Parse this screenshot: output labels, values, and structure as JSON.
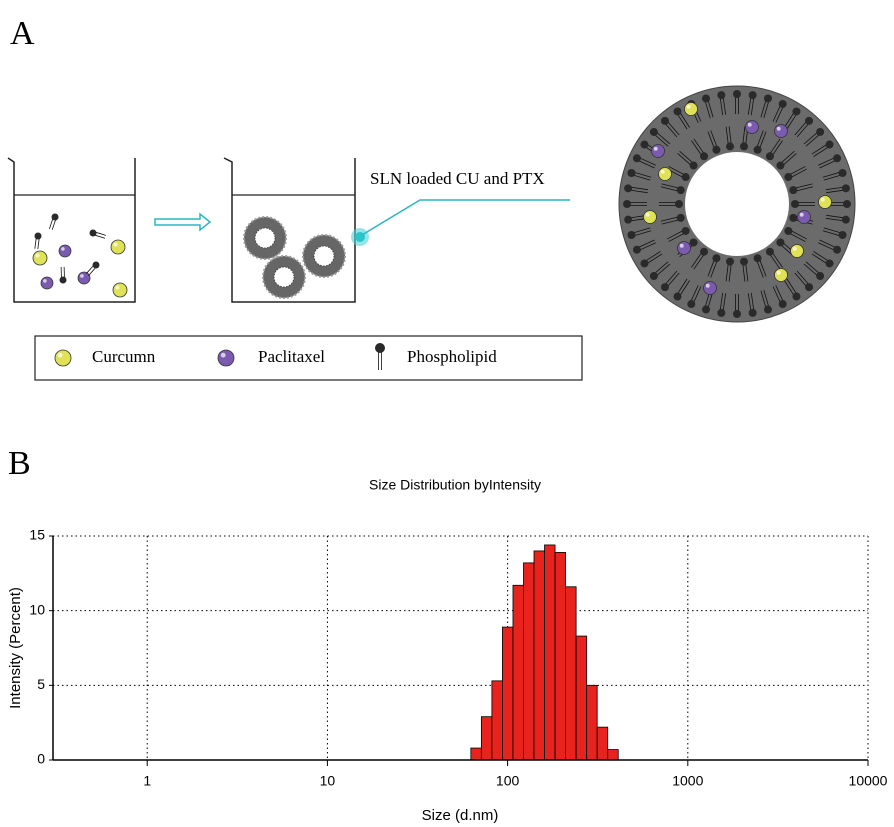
{
  "panel_a": {
    "label": "A",
    "annotation": "SLN loaded CU and PTX",
    "legend": [
      "Curcumn",
      "Paclitaxel",
      "Phospholipid"
    ]
  },
  "panel_b": {
    "label": "B"
  },
  "chart_data": {
    "type": "histogram",
    "title": "Size Distribution byIntensity",
    "x_label": "Size (d.nm)",
    "y_label": "Intensity (Percent)",
    "bins": [
      62.5,
      71.5,
      81.8,
      93.6,
      107.1,
      122.5,
      140.1,
      160.3,
      183.4,
      209.8,
      240.0,
      274.6,
      314.1,
      359.4,
      411.1
    ],
    "values": [
      0.8,
      2.9,
      5.3,
      8.9,
      11.7,
      13.2,
      14.0,
      14.4,
      13.9,
      11.6,
      8.3,
      5.0,
      2.2,
      0.7
    ],
    "color": "#e8231d",
    "xscale": "log",
    "xlim": [
      0.3,
      10000
    ],
    "xticks": [
      1,
      10,
      100,
      1000,
      10000
    ],
    "ylim": [
      0,
      15
    ],
    "yticks": [
      0,
      5,
      10,
      15
    ],
    "grid": true
  }
}
